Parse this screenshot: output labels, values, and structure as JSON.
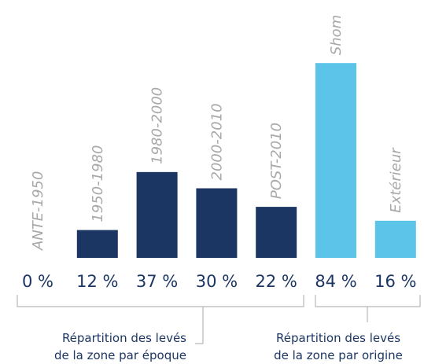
{
  "chart_data": {
    "type": "bar",
    "categories": [
      "ANTE-1950",
      "1950-1980",
      "1980-2000",
      "2000-2010",
      "POST-2010",
      "Shom",
      "Extérieur"
    ],
    "values": [
      0,
      12,
      37,
      30,
      22,
      84,
      16
    ],
    "value_labels": [
      "0 %",
      "12 %",
      "37 %",
      "30 %",
      "22 %",
      "84 %",
      "16 %"
    ],
    "colors": [
      "#1c3664",
      "#1c3664",
      "#1c3664",
      "#1c3664",
      "#1c3664",
      "#5bc4e8",
      "#5bc4e8"
    ],
    "groups": [
      {
        "caption": [
          "Répartition des levés",
          "de la zone par époque"
        ]
      },
      {
        "caption": [
          "Répartition des levés",
          "de la zone par origine"
        ]
      }
    ]
  }
}
